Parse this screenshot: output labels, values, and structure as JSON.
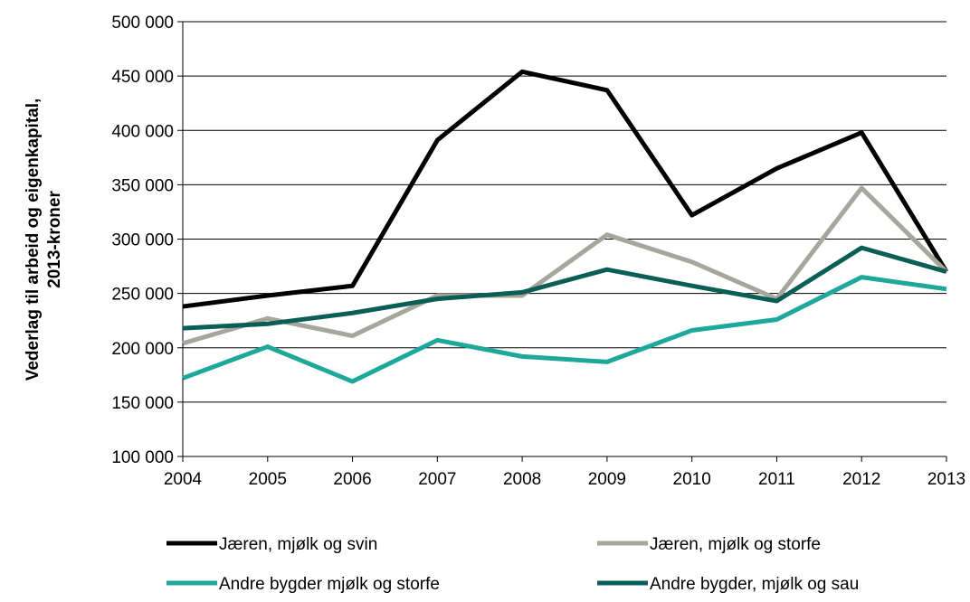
{
  "chart_data": {
    "type": "line",
    "y_label": [
      "Vederlag til arbeid og eigenkapital,",
      "2013-kroner"
    ],
    "x": [
      2004,
      2005,
      2006,
      2007,
      2008,
      2009,
      2010,
      2011,
      2012,
      2013
    ],
    "xlim": [
      2004,
      2013
    ],
    "xticks": [
      2004,
      2005,
      2006,
      2007,
      2008,
      2009,
      2010,
      2011,
      2012,
      2013
    ],
    "ylim": [
      100000,
      500000
    ],
    "yticks": [
      {
        "value": 100000,
        "label": "100 000"
      },
      {
        "value": 150000,
        "label": "150 000"
      },
      {
        "value": 200000,
        "label": "200 000"
      },
      {
        "value": 250000,
        "label": "250 000"
      },
      {
        "value": 300000,
        "label": "300 000"
      },
      {
        "value": 350000,
        "label": "350 000"
      },
      {
        "value": 400000,
        "label": "400 000"
      },
      {
        "value": 450000,
        "label": "450 000"
      },
      {
        "value": 500000,
        "label": "500 000"
      }
    ],
    "grid": true,
    "legend": "bottom",
    "series": [
      {
        "name": "Jæren, mjølk og svin",
        "color": "#000000",
        "values": [
          238000,
          248000,
          257000,
          391000,
          454000,
          437000,
          322000,
          365000,
          398000,
          270000
        ]
      },
      {
        "name": "Jæren, mjølk og storfe",
        "color": "#a6a69c",
        "values": [
          204000,
          227000,
          211000,
          248000,
          248000,
          304000,
          279000,
          245000,
          347000,
          270000
        ]
      },
      {
        "name": "Andre bygder mjølk og storfe",
        "color": "#1ea89c",
        "values": [
          172000,
          201000,
          169000,
          207000,
          192000,
          187000,
          216000,
          226000,
          265000,
          254000
        ]
      },
      {
        "name": "Andre bygder, mjølk og sau",
        "color": "#0b5e55",
        "values": [
          218000,
          222000,
          232000,
          245000,
          251000,
          272000,
          257000,
          243000,
          292000,
          270000
        ]
      }
    ]
  }
}
